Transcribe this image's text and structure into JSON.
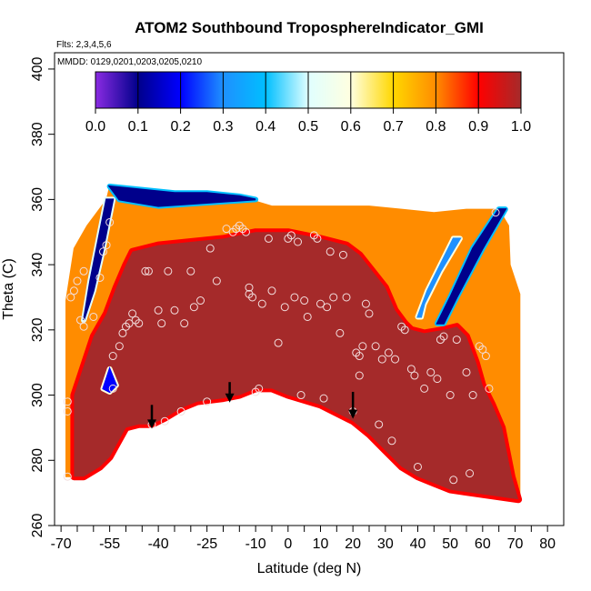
{
  "chart_data": {
    "type": "heatmap",
    "title": "ATOM2 Southbound TroposphereIndicator_GMI",
    "subtitle_flights": "Flts: 2,3,4,5,6",
    "subtitle_dates": "MMDD: 0129,0201,0203,0205,0210",
    "xlabel": "Latitude (deg N)",
    "ylabel": "Theta (C)",
    "xlim": [
      -72,
      85
    ],
    "ylim": [
      260,
      405
    ],
    "x_ticks": [
      -70,
      -65,
      -60,
      -55,
      -50,
      -45,
      -40,
      -35,
      -30,
      -25,
      -20,
      -15,
      -10,
      -5,
      0,
      5,
      10,
      15,
      20,
      25,
      30,
      35,
      40,
      45,
      50,
      55,
      60,
      65,
      70,
      75,
      80
    ],
    "x_tick_labels": [
      "-70",
      "-55",
      "-40",
      "-25",
      "-10",
      "0",
      "10",
      "20",
      "30",
      "40",
      "50",
      "60",
      "70",
      "80"
    ],
    "x_tick_label_values": [
      -70,
      -55,
      -40,
      -25,
      -10,
      0,
      10,
      20,
      30,
      40,
      50,
      60,
      70,
      80
    ],
    "y_ticks": [
      260,
      280,
      300,
      320,
      340,
      360,
      380,
      400
    ],
    "y_tick_labels": [
      "260",
      "280",
      "300",
      "320",
      "340",
      "360",
      "380",
      "400"
    ],
    "colorbar": {
      "min": 0.0,
      "max": 1.0,
      "tick_values": [
        0.0,
        0.1,
        0.2,
        0.3,
        0.4,
        0.5,
        0.6,
        0.7,
        0.8,
        0.9,
        1.0
      ],
      "tick_labels": [
        "0.0",
        "0.1",
        "0.2",
        "0.3",
        "0.4",
        "0.5",
        "0.6",
        "0.7",
        "0.8",
        "0.9",
        "1.0"
      ],
      "colors": [
        "#8a2be2",
        "#00008b",
        "#0000ff",
        "#1e90ff",
        "#00bfff",
        "#e0ffff",
        "#ffffe0",
        "#ffd700",
        "#ff8c00",
        "#ff0000",
        "#a52a2a"
      ]
    },
    "data_outline": [
      [
        -68.5,
        275
      ],
      [
        -68.5,
        329
      ],
      [
        -66,
        345
      ],
      [
        -62,
        352
      ],
      [
        -56,
        360
      ],
      [
        -55,
        364
      ],
      [
        -50,
        363
      ],
      [
        -40,
        362
      ],
      [
        -30,
        362
      ],
      [
        -20,
        362
      ],
      [
        -15,
        361
      ],
      [
        -5,
        358
      ],
      [
        5,
        358
      ],
      [
        15,
        358
      ],
      [
        25,
        358
      ],
      [
        35,
        357
      ],
      [
        45,
        356
      ],
      [
        55,
        357
      ],
      [
        62,
        357
      ],
      [
        65,
        357
      ],
      [
        68,
        352
      ],
      [
        68.5,
        340
      ],
      [
        71.5,
        331
      ],
      [
        71.5,
        300
      ],
      [
        71.5,
        268
      ],
      [
        50,
        271
      ],
      [
        45,
        273
      ],
      [
        40,
        275
      ],
      [
        35,
        278
      ],
      [
        30,
        283
      ],
      [
        25,
        288
      ],
      [
        20,
        292
      ],
      [
        10,
        297
      ],
      [
        0,
        300
      ],
      [
        -5,
        302
      ],
      [
        -10,
        302
      ],
      [
        -15,
        300
      ],
      [
        -20,
        299
      ],
      [
        -28,
        298
      ],
      [
        -33,
        296
      ],
      [
        -38,
        293
      ],
      [
        -42,
        291
      ],
      [
        -46,
        291
      ],
      [
        -50,
        290
      ],
      [
        -55,
        281
      ],
      [
        -58,
        278
      ],
      [
        -63,
        275
      ],
      [
        -68.5,
        275
      ]
    ],
    "core_outline": [
      [
        -66,
        275
      ],
      [
        -66,
        300
      ],
      [
        -60,
        318
      ],
      [
        -56,
        325
      ],
      [
        -53,
        333
      ],
      [
        -50,
        340
      ],
      [
        -48,
        344
      ],
      [
        -40,
        346
      ],
      [
        -30,
        347
      ],
      [
        -20,
        348
      ],
      [
        -10,
        350
      ],
      [
        0,
        350
      ],
      [
        10,
        348
      ],
      [
        18,
        346
      ],
      [
        22,
        343
      ],
      [
        26,
        338
      ],
      [
        30,
        333
      ],
      [
        33,
        326
      ],
      [
        36,
        322
      ],
      [
        38,
        320
      ],
      [
        42,
        319
      ],
      [
        48,
        320
      ],
      [
        52,
        321
      ],
      [
        55,
        318
      ],
      [
        58,
        310
      ],
      [
        60,
        303
      ],
      [
        63,
        297
      ],
      [
        66,
        290
      ],
      [
        69,
        275
      ],
      [
        71,
        268
      ],
      [
        50,
        271
      ],
      [
        45,
        273
      ],
      [
        40,
        275
      ],
      [
        35,
        278
      ],
      [
        30,
        283
      ],
      [
        25,
        288
      ],
      [
        20,
        292
      ],
      [
        10,
        297
      ],
      [
        0,
        300
      ],
      [
        -5,
        302
      ],
      [
        -10,
        302
      ],
      [
        -15,
        300
      ],
      [
        -20,
        299
      ],
      [
        -28,
        298
      ],
      [
        -33,
        296
      ],
      [
        -38,
        293
      ],
      [
        -42,
        291
      ],
      [
        -46,
        291
      ],
      [
        -50,
        290
      ],
      [
        -55,
        281
      ],
      [
        -58,
        278
      ],
      [
        -63,
        275
      ],
      [
        -66,
        275
      ]
    ],
    "low_bands": [
      {
        "name": "upper-rim",
        "points": [
          [
            -55,
            364
          ],
          [
            -45,
            363
          ],
          [
            -35,
            362
          ],
          [
            -25,
            362
          ],
          [
            -15,
            361
          ],
          [
            -10,
            360
          ],
          [
            -25,
            359
          ],
          [
            -40,
            358
          ],
          [
            -52,
            360
          ],
          [
            -55,
            364
          ]
        ],
        "value": 0.05
      },
      {
        "name": "ridge-south",
        "points": [
          [
            -56,
            360
          ],
          [
            -54,
            360
          ],
          [
            -57,
            345
          ],
          [
            -60,
            332
          ],
          [
            -62,
            326
          ],
          [
            -63,
            323
          ],
          [
            -61,
            335
          ],
          [
            -58,
            350
          ],
          [
            -56,
            360
          ]
        ],
        "value": 0.1
      },
      {
        "name": "ridge-north-a",
        "points": [
          [
            65,
            357
          ],
          [
            67,
            357
          ],
          [
            60,
            345
          ],
          [
            52,
            330
          ],
          [
            48,
            322
          ],
          [
            46,
            322
          ],
          [
            50,
            330
          ],
          [
            57,
            345
          ],
          [
            65,
            357
          ]
        ],
        "value": 0.05
      },
      {
        "name": "ridge-north-b",
        "points": [
          [
            51,
            348
          ],
          [
            53,
            348
          ],
          [
            47,
            338
          ],
          [
            42,
            328
          ],
          [
            41,
            324
          ],
          [
            40,
            324
          ],
          [
            43,
            332
          ],
          [
            48,
            342
          ],
          [
            51,
            348
          ]
        ],
        "value": 0.3
      },
      {
        "name": "pocket-south",
        "points": [
          [
            -57,
            302
          ],
          [
            -55,
            308
          ],
          [
            -53,
            303
          ],
          [
            -55,
            301
          ],
          [
            -57,
            302
          ]
        ],
        "value": 0.2
      }
    ],
    "arrows_x": [
      -42,
      -18,
      20
    ],
    "arrows_y_top": [
      297,
      304,
      301
    ],
    "arrows_y_bottom": [
      290,
      298,
      293
    ],
    "points": [
      [
        -68,
        275
      ],
      [
        -68,
        295
      ],
      [
        -68,
        298
      ],
      [
        -67,
        330
      ],
      [
        -66,
        332
      ],
      [
        -65,
        335
      ],
      [
        -64,
        323
      ],
      [
        -63,
        321
      ],
      [
        -63,
        338
      ],
      [
        -60,
        324
      ],
      [
        -58,
        336
      ],
      [
        -57,
        344
      ],
      [
        -56,
        346
      ],
      [
        -55,
        353
      ],
      [
        -54,
        312
      ],
      [
        -54,
        302
      ],
      [
        -52,
        315
      ],
      [
        -51,
        319
      ],
      [
        -50,
        321
      ],
      [
        -49,
        322
      ],
      [
        -48,
        325
      ],
      [
        -47,
        323
      ],
      [
        -46,
        322
      ],
      [
        -44,
        338
      ],
      [
        -43,
        338
      ],
      [
        -42,
        291
      ],
      [
        -40,
        326
      ],
      [
        -39,
        322
      ],
      [
        -38,
        292
      ],
      [
        -37,
        338
      ],
      [
        -35,
        326
      ],
      [
        -33,
        295
      ],
      [
        -32,
        322
      ],
      [
        -30,
        338
      ],
      [
        -29,
        327
      ],
      [
        -27,
        329
      ],
      [
        -25,
        298
      ],
      [
        -24,
        345
      ],
      [
        -22,
        335
      ],
      [
        -19,
        351
      ],
      [
        -17,
        350
      ],
      [
        -16,
        351
      ],
      [
        -15,
        352
      ],
      [
        -14,
        351
      ],
      [
        -13,
        350
      ],
      [
        -12,
        333
      ],
      [
        -12,
        331
      ],
      [
        -11,
        330
      ],
      [
        -10,
        301
      ],
      [
        -9,
        302
      ],
      [
        -8,
        328
      ],
      [
        -6,
        348
      ],
      [
        -5,
        332
      ],
      [
        -3,
        316
      ],
      [
        -1,
        327
      ],
      [
        0,
        348
      ],
      [
        1,
        349
      ],
      [
        2,
        330
      ],
      [
        3,
        347
      ],
      [
        4,
        300
      ],
      [
        5,
        329
      ],
      [
        6,
        324
      ],
      [
        8,
        349
      ],
      [
        9,
        348
      ],
      [
        10,
        328
      ],
      [
        11,
        299
      ],
      [
        12,
        327
      ],
      [
        13,
        344
      ],
      [
        14,
        330
      ],
      [
        16,
        319
      ],
      [
        17,
        343
      ],
      [
        18,
        330
      ],
      [
        20,
        295
      ],
      [
        21,
        313
      ],
      [
        22,
        312
      ],
      [
        22,
        306
      ],
      [
        23,
        315
      ],
      [
        24,
        328
      ],
      [
        25,
        325
      ],
      [
        27,
        315
      ],
      [
        28,
        291
      ],
      [
        29,
        311
      ],
      [
        31,
        313
      ],
      [
        32,
        286
      ],
      [
        33,
        311
      ],
      [
        35,
        321
      ],
      [
        36,
        320
      ],
      [
        38,
        308
      ],
      [
        39,
        306
      ],
      [
        40,
        278
      ],
      [
        42,
        302
      ],
      [
        44,
        307
      ],
      [
        46,
        305
      ],
      [
        47,
        317
      ],
      [
        48,
        318
      ],
      [
        50,
        300
      ],
      [
        51,
        274
      ],
      [
        52,
        317
      ],
      [
        55,
        307
      ],
      [
        56,
        276
      ],
      [
        57,
        300
      ],
      [
        59,
        315
      ],
      [
        60,
        314
      ],
      [
        61,
        312
      ],
      [
        62,
        302
      ],
      [
        64,
        356
      ]
    ]
  }
}
